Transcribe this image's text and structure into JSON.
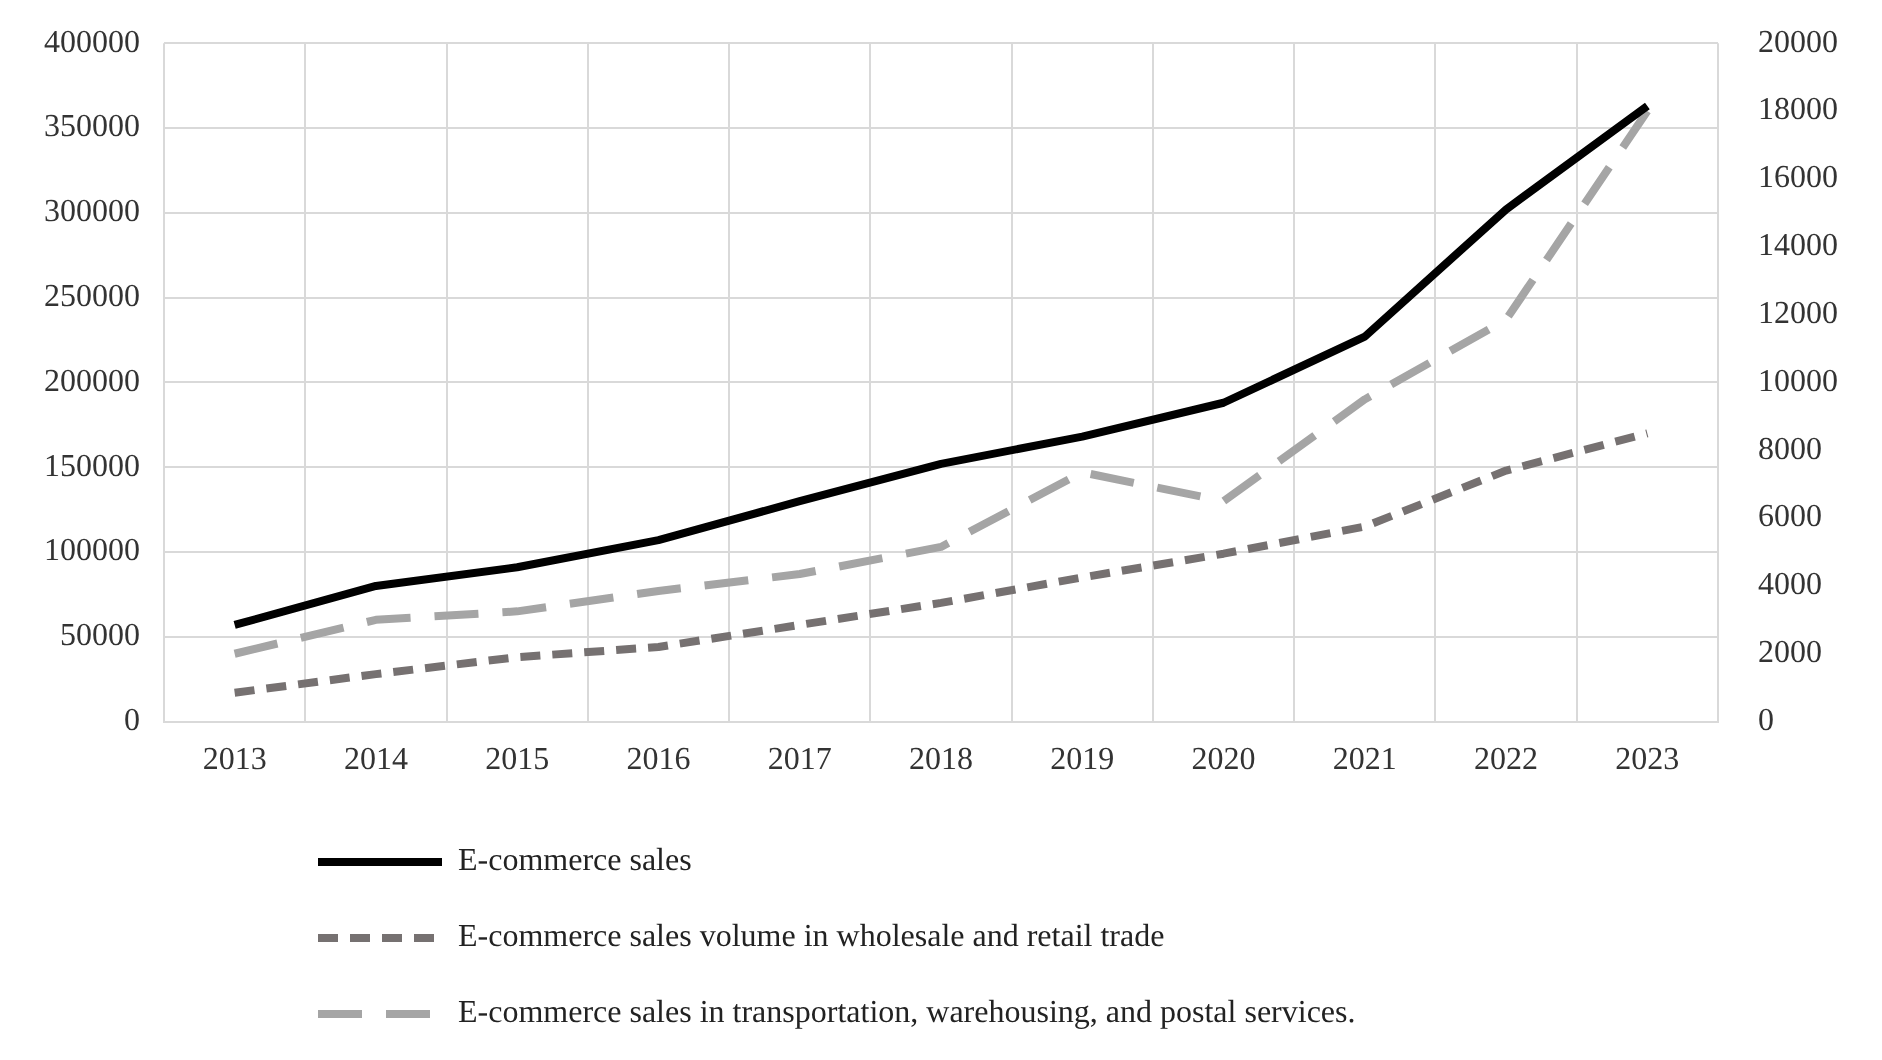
{
  "chart_data": {
    "type": "line",
    "categories": [
      "2013",
      "2014",
      "2015",
      "2016",
      "2017",
      "2018",
      "2019",
      "2020",
      "2021",
      "2022",
      "2023"
    ],
    "series": [
      {
        "name": "E-commerce sales",
        "color": "#000000",
        "line_style": "solid",
        "values": [
          57000,
          80000,
          91000,
          107000,
          130000,
          152000,
          168000,
          188000,
          227000,
          302000,
          363000
        ]
      },
      {
        "name": "E-commerce sales volume in wholesale and retail trade",
        "color": "#767171",
        "line_style": "dashed",
        "values": [
          17000,
          28000,
          38000,
          44000,
          57000,
          70000,
          85000,
          99000,
          115000,
          148000,
          170000
        ]
      },
      {
        "name": "E-commerce sales in transportation, warehousing, and postal services.",
        "color": "#a5a5a5",
        "line_style": "dashed",
        "axis": "y2",
        "values": [
          2000,
          3000,
          3250,
          3850,
          4350,
          5150,
          7350,
          6500,
          9500,
          11850,
          18000
        ]
      }
    ],
    "ylim": [
      0,
      400000
    ],
    "yticks": [
      0,
      50000,
      100000,
      150000,
      200000,
      250000,
      300000,
      350000,
      400000
    ],
    "y2lim": [
      0,
      20000
    ],
    "y2ticks": [
      0,
      2000,
      4000,
      6000,
      8000,
      10000,
      12000,
      14000,
      16000,
      18000,
      20000
    ],
    "grid": true,
    "legend": "bottom"
  }
}
